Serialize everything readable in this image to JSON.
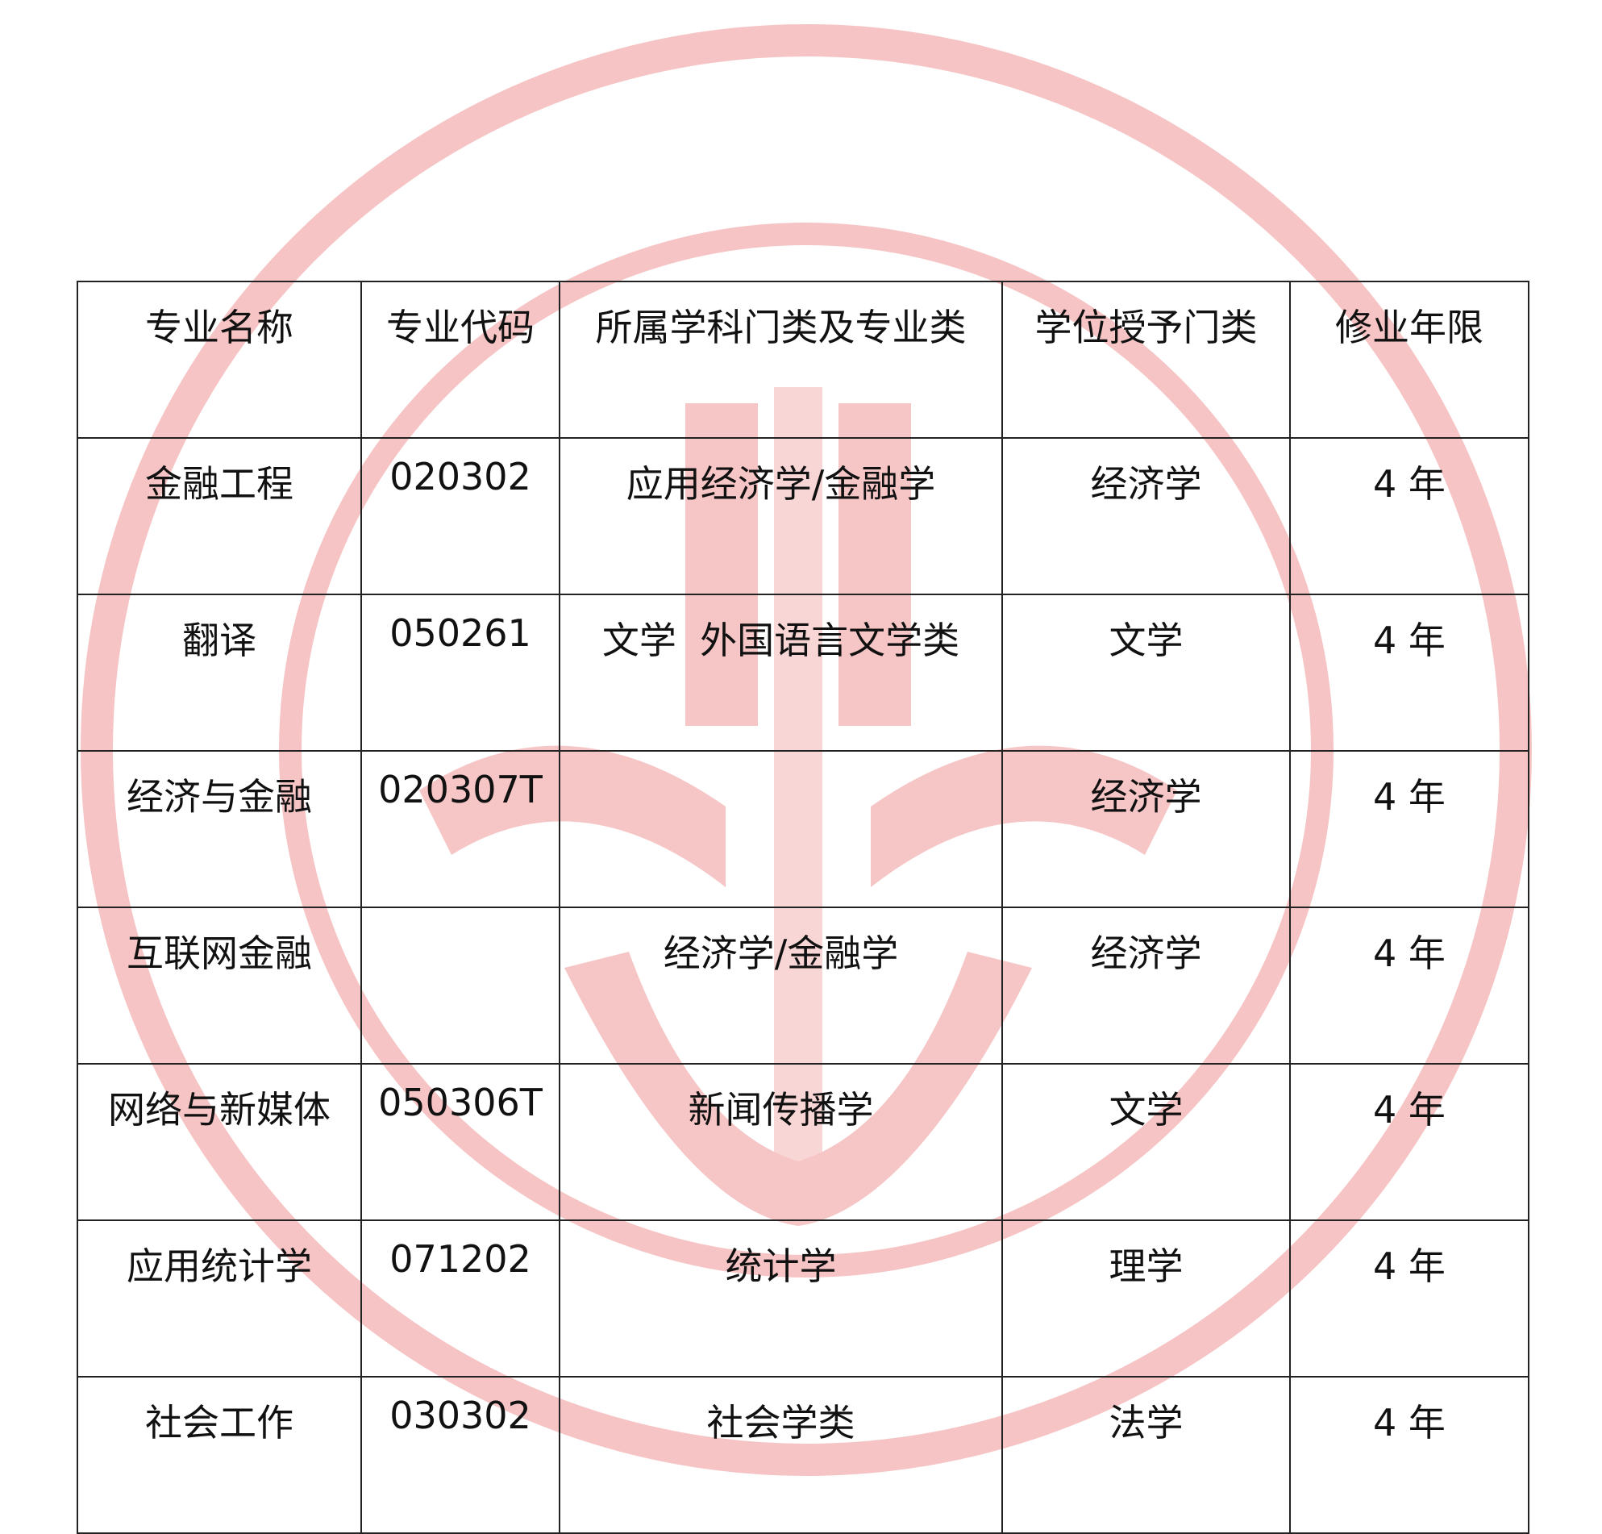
{
  "watermark": {
    "color": "#f3b8b8"
  },
  "table": {
    "headers": [
      "专业名称",
      "专业代码",
      "所属学科门类及专业类",
      "学位授予门类",
      "修业年限"
    ],
    "rows": [
      [
        "金融工程",
        "020302",
        "应用经济学/金融学",
        "经济学",
        "4 年"
      ],
      [
        "翻译",
        "050261",
        "文学  外国语言文学类",
        "文学",
        "4 年"
      ],
      [
        "经济与金融",
        "020307T",
        "",
        "经济学",
        "4 年"
      ],
      [
        "互联网金融",
        "",
        "经济学/金融学",
        "经济学",
        "4 年"
      ],
      [
        "网络与新媒体",
        "050306T",
        "新闻传播学",
        "文学",
        "4 年"
      ],
      [
        "应用统计学",
        "071202",
        "统计学",
        "理学",
        "4 年"
      ],
      [
        "社会工作",
        "030302",
        "社会学类",
        "法学",
        "4 年"
      ]
    ]
  }
}
